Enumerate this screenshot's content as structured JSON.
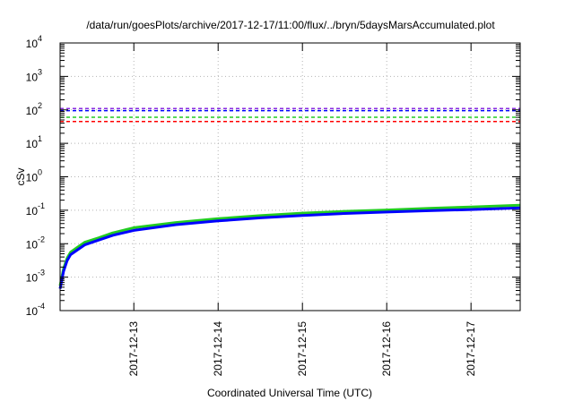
{
  "chart_data": {
    "type": "line",
    "title": "/data/run/goesPlots/archive/2017-12-17/11:00/flux/../bryn/5daysMarsAccumulated.plot",
    "xlabel": "Coordinated Universal Time (UTC)",
    "ylabel": "cSv",
    "yscale": "log",
    "ylim": [
      0.0001,
      10000
    ],
    "xlim": [
      "2017-12-12T03:00",
      "2017-12-17T14:00"
    ],
    "grid": true,
    "legend": "none",
    "y_ticks": [
      {
        "value": 0.0001,
        "base": "10",
        "exp": "-4"
      },
      {
        "value": 0.001,
        "base": "10",
        "exp": "-3"
      },
      {
        "value": 0.01,
        "base": "10",
        "exp": "-2"
      },
      {
        "value": 0.1,
        "base": "10",
        "exp": "-1"
      },
      {
        "value": 1,
        "base": "10",
        "exp": "0"
      },
      {
        "value": 10,
        "base": "10",
        "exp": "1"
      },
      {
        "value": 100,
        "base": "10",
        "exp": "2"
      },
      {
        "value": 1000,
        "base": "10",
        "exp": "3"
      },
      {
        "value": 10000,
        "base": "10",
        "exp": "4"
      }
    ],
    "x_ticks": [
      "2017-12-13",
      "2017-12-14",
      "2017-12-15",
      "2017-12-16",
      "2017-12-17"
    ],
    "reference_lines": [
      {
        "y": 110,
        "color": "#8a2be2"
      },
      {
        "y": 95,
        "color": "#0000ff"
      },
      {
        "y": 60,
        "color": "#22cc22"
      },
      {
        "y": 45,
        "color": "#ff0000"
      }
    ],
    "series": [
      {
        "color": "#22cc22",
        "x": [
          "2017-12-12T03:00",
          "2017-12-12T04:00",
          "2017-12-12T05:00",
          "2017-12-12T06:00",
          "2017-12-12T08:00",
          "2017-12-12T10:00",
          "2017-12-12T14:00",
          "2017-12-12T18:00",
          "2017-12-13T00:00",
          "2017-12-13T12:00",
          "2017-12-14T00:00",
          "2017-12-14T12:00",
          "2017-12-15T00:00",
          "2017-12-15T12:00",
          "2017-12-16T00:00",
          "2017-12-16T12:00",
          "2017-12-17T00:00",
          "2017-12-17T14:00"
        ],
        "values": [
          0.00055,
          0.0018,
          0.0037,
          0.0056,
          0.0079,
          0.011,
          0.015,
          0.021,
          0.03,
          0.043,
          0.056,
          0.069,
          0.082,
          0.093,
          0.102,
          0.114,
          0.125,
          0.142
        ]
      },
      {
        "color": "#0000ff",
        "x": [
          "2017-12-12T03:00",
          "2017-12-12T04:00",
          "2017-12-12T05:00",
          "2017-12-12T06:00",
          "2017-12-12T08:00",
          "2017-12-12T10:00",
          "2017-12-12T14:00",
          "2017-12-12T18:00",
          "2017-12-13T00:00",
          "2017-12-13T12:00",
          "2017-12-14T00:00",
          "2017-12-14T12:00",
          "2017-12-15T00:00",
          "2017-12-15T12:00",
          "2017-12-16T00:00",
          "2017-12-16T12:00",
          "2017-12-17T00:00",
          "2017-12-17T14:00"
        ],
        "values": [
          0.00045,
          0.0015,
          0.0031,
          0.0047,
          0.0066,
          0.0092,
          0.0128,
          0.0178,
          0.025,
          0.037,
          0.048,
          0.059,
          0.07,
          0.08,
          0.088,
          0.097,
          0.105,
          0.118
        ]
      }
    ]
  }
}
